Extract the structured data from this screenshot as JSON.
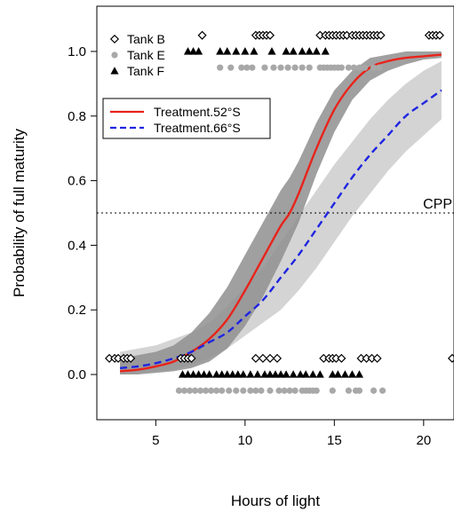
{
  "chart_data": {
    "type": "line",
    "xlabel": "Hours of light",
    "ylabel": "Probability of full maturity",
    "xlim": [
      1.7,
      21.7
    ],
    "ylim": [
      -0.14,
      1.14
    ],
    "x_ticks": [
      5,
      10,
      15,
      20
    ],
    "y_ticks": [
      0.0,
      0.2,
      0.4,
      0.6,
      0.8,
      1.0
    ],
    "x_tick_labels": [
      "5",
      "10",
      "15",
      "20"
    ],
    "y_tick_labels": [
      "0.0",
      "0.2",
      "0.4",
      "0.6",
      "0.8",
      "1.0"
    ],
    "grid": false,
    "reference_line": {
      "y": 0.5,
      "label": "CPP",
      "style": "dotted"
    },
    "series": [
      {
        "name": "Treatment.52°S",
        "color": "#e8231b",
        "style": "solid",
        "x": [
          3,
          4,
          5,
          6,
          7,
          8,
          9,
          10,
          11,
          12,
          12.5,
          13,
          14,
          15,
          16,
          17,
          18,
          19,
          20,
          21
        ],
        "y": [
          0.01,
          0.015,
          0.025,
          0.04,
          0.07,
          0.11,
          0.17,
          0.26,
          0.36,
          0.46,
          0.5,
          0.56,
          0.7,
          0.82,
          0.9,
          0.95,
          0.97,
          0.98,
          0.985,
          0.99
        ],
        "ci_lower": [
          0.0,
          0.0,
          0.005,
          0.01,
          0.02,
          0.04,
          0.08,
          0.15,
          0.24,
          0.35,
          0.41,
          0.47,
          0.62,
          0.75,
          0.85,
          0.91,
          0.94,
          0.96,
          0.975,
          0.98
        ],
        "ci_upper": [
          0.05,
          0.06,
          0.07,
          0.09,
          0.13,
          0.19,
          0.27,
          0.37,
          0.47,
          0.57,
          0.61,
          0.66,
          0.78,
          0.88,
          0.94,
          0.98,
          0.99,
          1.0,
          1.0,
          1.0
        ],
        "ci_color": "#8f8f8f"
      },
      {
        "name": "Treatment.66°S",
        "color": "#1f25e0",
        "style": "dashed",
        "x": [
          3,
          4,
          5,
          6,
          7,
          8,
          9,
          10,
          11,
          12,
          13,
          14,
          15,
          16,
          17,
          18,
          19,
          20,
          21
        ],
        "y": [
          0.02,
          0.025,
          0.035,
          0.05,
          0.07,
          0.1,
          0.13,
          0.18,
          0.23,
          0.3,
          0.37,
          0.45,
          0.53,
          0.61,
          0.68,
          0.74,
          0.8,
          0.84,
          0.88
        ],
        "ci_lower": [
          0.0,
          0.005,
          0.01,
          0.015,
          0.03,
          0.05,
          0.08,
          0.12,
          0.16,
          0.2,
          0.26,
          0.33,
          0.41,
          0.49,
          0.56,
          0.63,
          0.69,
          0.74,
          0.79
        ],
        "ci_upper": [
          0.07,
          0.08,
          0.09,
          0.11,
          0.13,
          0.16,
          0.21,
          0.27,
          0.33,
          0.41,
          0.49,
          0.57,
          0.65,
          0.72,
          0.79,
          0.85,
          0.9,
          0.94,
          0.97
        ],
        "ci_color": "#cccccc"
      }
    ],
    "points": [
      {
        "name": "Tank B",
        "marker": "diamond-open",
        "color": "#000000",
        "y_matured": 1.05,
        "y_not_matured": 0.05,
        "x_matured": [
          7.6,
          10.6,
          10.8,
          11.0,
          11.2,
          11.4,
          14.2,
          14.5,
          14.7,
          14.9,
          15.1,
          15.3,
          15.5,
          15.7,
          16.0,
          16.2,
          16.4,
          16.6,
          16.8,
          17.0,
          17.2,
          17.4,
          17.6,
          20.3,
          20.5,
          20.7,
          20.9
        ],
        "x_not_matured": [
          2.4,
          2.7,
          2.9,
          3.2,
          3.4,
          3.6,
          6.4,
          6.6,
          6.8,
          7.0,
          10.6,
          11.0,
          11.4,
          11.8,
          14.4,
          14.7,
          14.9,
          15.1,
          15.4,
          16.5,
          16.8,
          17.1,
          17.4,
          21.6
        ]
      },
      {
        "name": "Tank E",
        "marker": "circle-filled",
        "color": "#a8a8a8",
        "y_matured": 0.95,
        "y_not_matured": -0.05,
        "x_matured": [
          8.6,
          9.2,
          9.8,
          10.1,
          10.4,
          11.1,
          11.6,
          12.0,
          12.4,
          12.8,
          13.2,
          13.6,
          14.2,
          14.4,
          14.6,
          14.8,
          15.0,
          15.2,
          15.4,
          15.8,
          16.1,
          16.4,
          16.7,
          17.2,
          17.5
        ],
        "x_not_matured": [
          6.3,
          6.6,
          6.9,
          7.2,
          7.5,
          7.8,
          8.1,
          8.4,
          8.7,
          9.1,
          9.5,
          9.9,
          10.3,
          10.6,
          10.9,
          11.4,
          11.9,
          12.2,
          12.5,
          12.8,
          13.2,
          13.4,
          13.6,
          13.8,
          14.0,
          14.9,
          15.8,
          16.2,
          16.4,
          17.2,
          17.7
        ]
      },
      {
        "name": "Tank F",
        "marker": "triangle-filled",
        "color": "#000000",
        "y_matured": 1.0,
        "y_not_matured": 0.0,
        "x_matured": [
          6.8,
          7.1,
          7.4,
          8.6,
          9.0,
          9.5,
          10.0,
          10.5,
          11.5,
          12.3,
          12.7,
          13.2,
          13.6,
          14.0,
          14.5
        ],
        "x_not_matured": [
          6.5,
          6.8,
          7.1,
          7.4,
          7.7,
          8.0,
          8.4,
          8.7,
          9.0,
          9.3,
          9.6,
          9.9,
          10.3,
          10.7,
          11.1,
          11.4,
          11.7,
          12.0,
          12.3,
          12.7,
          13.1,
          13.4,
          13.8,
          14.2,
          14.9,
          15.2,
          15.6,
          16.0,
          16.4
        ]
      }
    ]
  }
}
